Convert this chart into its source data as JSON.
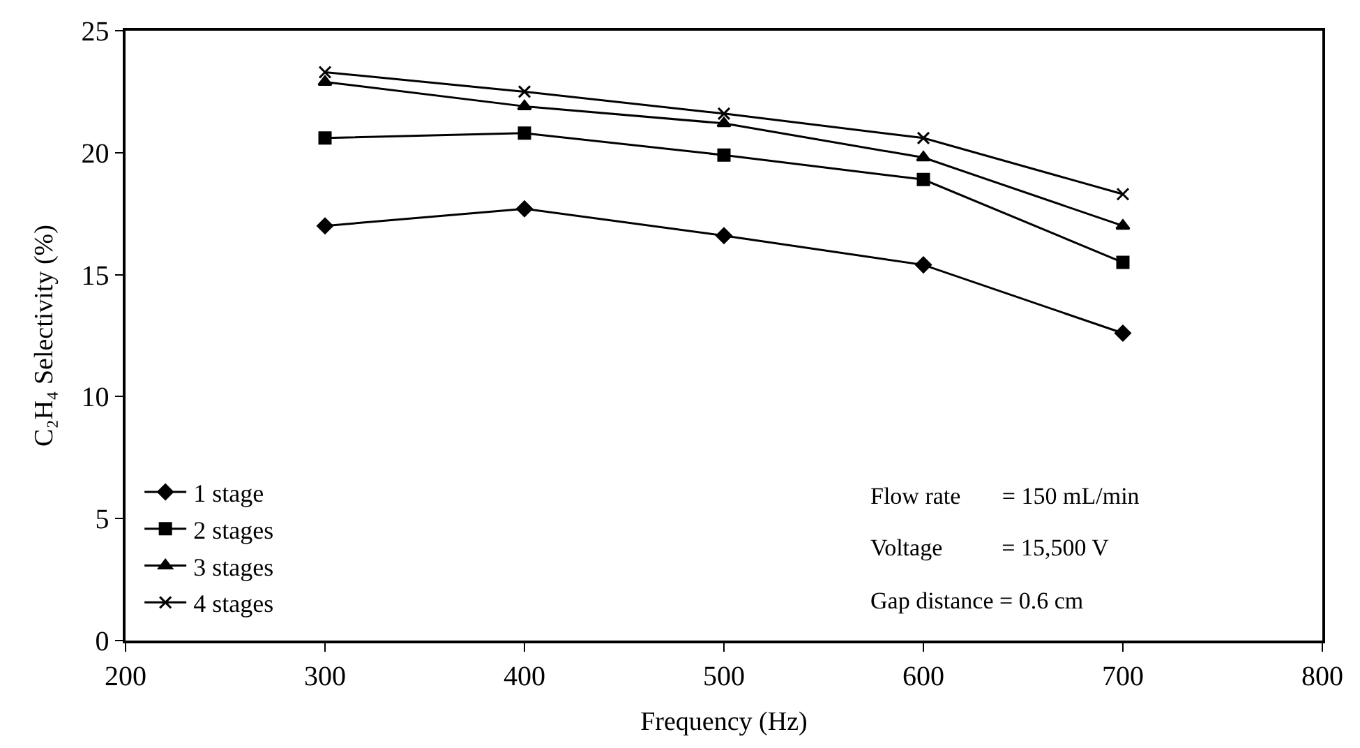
{
  "chart_data": {
    "type": "line",
    "xlabel": "Frequency (Hz)",
    "ylabel": "C₂H₄ Selectivity (%)",
    "x": [
      300,
      400,
      500,
      600,
      700
    ],
    "series": [
      {
        "name": "1 stage",
        "color": "#000000",
        "marker": "diamond",
        "values": [
          17.0,
          17.7,
          16.6,
          15.4,
          12.6
        ]
      },
      {
        "name": "2 stages",
        "color": "#000000",
        "marker": "square",
        "values": [
          20.6,
          20.8,
          19.9,
          18.9,
          15.5
        ]
      },
      {
        "name": "3 stages",
        "color": "#000000",
        "marker": "triangle",
        "values": [
          22.9,
          21.9,
          21.2,
          19.8,
          17.0
        ]
      },
      {
        "name": "4 stages",
        "color": "#000000",
        "marker": "cross",
        "values": [
          23.3,
          22.5,
          21.6,
          20.6,
          18.3
        ]
      }
    ],
    "xlim": [
      200,
      800
    ],
    "xticks": [
      200,
      300,
      400,
      500,
      600,
      700,
      800
    ],
    "ylim": [
      0,
      25
    ],
    "yticks": [
      0,
      5,
      10,
      15,
      20,
      25
    ],
    "legend": "bottom left",
    "line_style": "solid",
    "annotations": [
      "Flow rate       = 150 mL/min",
      "Voltage          = 15,500 V",
      "Gap distance = 0.6 cm"
    ]
  }
}
